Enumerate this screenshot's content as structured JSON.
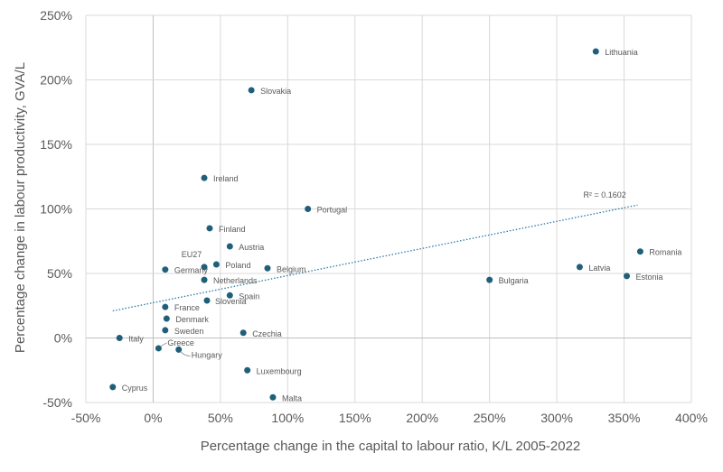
{
  "chart_data": {
    "type": "scatter",
    "title": "",
    "xlabel": "Percentage change in the capital to labour ratio, K/L 2005-2022",
    "ylabel": "Percentage change in labour productivity, GVA/L",
    "xlim": [
      -50,
      400
    ],
    "ylim": [
      -50,
      250
    ],
    "xticks": [
      -50,
      0,
      50,
      100,
      150,
      200,
      250,
      300,
      350,
      400
    ],
    "yticks": [
      -50,
      0,
      50,
      100,
      150,
      200,
      250
    ],
    "tick_suffix": "%",
    "grid": true,
    "color": "#1f5f7a",
    "points": [
      {
        "label": "Lithuania",
        "x": 329,
        "y": 222
      },
      {
        "label": "Slovakia",
        "x": 73,
        "y": 192
      },
      {
        "label": "Ireland",
        "x": 38,
        "y": 124
      },
      {
        "label": "Portugal",
        "x": 115,
        "y": 100
      },
      {
        "label": "Finland",
        "x": 42,
        "y": 85
      },
      {
        "label": "Austria",
        "x": 57,
        "y": 71
      },
      {
        "label": "EU27",
        "x": 38,
        "y": 55
      },
      {
        "label": "Poland",
        "x": 47,
        "y": 57
      },
      {
        "label": "Germany",
        "x": 9,
        "y": 53
      },
      {
        "label": "Belgium",
        "x": 85,
        "y": 54
      },
      {
        "label": "Netherlands",
        "x": 38,
        "y": 45
      },
      {
        "label": "Slovenia",
        "x": 40,
        "y": 29
      },
      {
        "label": "Spain",
        "x": 57,
        "y": 33
      },
      {
        "label": "France",
        "x": 9,
        "y": 24
      },
      {
        "label": "Denmark",
        "x": 10,
        "y": 15
      },
      {
        "label": "Sweden",
        "x": 9,
        "y": 6
      },
      {
        "label": "Czechia",
        "x": 67,
        "y": 4
      },
      {
        "label": "Italy",
        "x": -25,
        "y": 0
      },
      {
        "label": "Greece",
        "x": 4,
        "y": -8
      },
      {
        "label": "Hungary",
        "x": 19,
        "y": -9
      },
      {
        "label": "Luxembourg",
        "x": 70,
        "y": -25
      },
      {
        "label": "Cyprus",
        "x": -30,
        "y": -38
      },
      {
        "label": "Malta",
        "x": 89,
        "y": -46
      },
      {
        "label": "Bulgaria",
        "x": 250,
        "y": 45
      },
      {
        "label": "Latvia",
        "x": 317,
        "y": 55
      },
      {
        "label": "Romania",
        "x": 362,
        "y": 67
      },
      {
        "label": "Estonia",
        "x": 352,
        "y": 48
      }
    ],
    "trendline": {
      "type": "linear",
      "x_range": [
        -30,
        360
      ],
      "y_start": 21,
      "y_end": 103,
      "r2_label": "R² = 0.1602"
    }
  }
}
